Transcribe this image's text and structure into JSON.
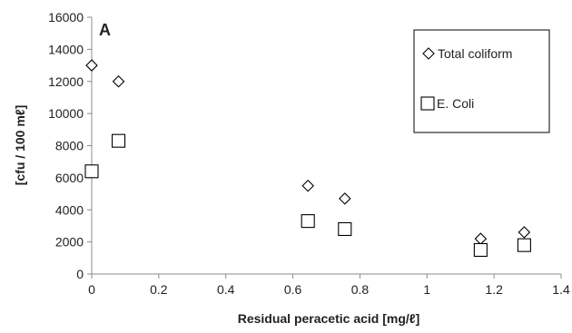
{
  "chart_data": {
    "type": "scatter",
    "panel_label": "A",
    "xlabel": "Residual peracetic acid [mg/ℓ]",
    "ylabel": "[cfu / 100 mℓ]",
    "xlim": [
      0,
      1.4
    ],
    "ylim": [
      0,
      16000
    ],
    "x_ticks": [
      "0",
      "0.2",
      "0.4",
      "0.6",
      "0.8",
      "1",
      "1.2",
      "1.4"
    ],
    "y_ticks": [
      "0",
      "2000",
      "4000",
      "6000",
      "8000",
      "10000",
      "12000",
      "14000",
      "16000"
    ],
    "grid": false,
    "legend_position": "top-right",
    "series": [
      {
        "name": "Total coliform",
        "marker": "diamond",
        "color": "#000000",
        "points": [
          {
            "x": 0.0,
            "y": 13000
          },
          {
            "x": 0.08,
            "y": 12000
          },
          {
            "x": 0.645,
            "y": 5500
          },
          {
            "x": 0.755,
            "y": 4700
          },
          {
            "x": 1.16,
            "y": 2200
          },
          {
            "x": 1.29,
            "y": 2600
          }
        ]
      },
      {
        "name": "E. Coli",
        "marker": "square",
        "color": "#000000",
        "points": [
          {
            "x": 0.0,
            "y": 6400
          },
          {
            "x": 0.08,
            "y": 8300
          },
          {
            "x": 0.645,
            "y": 3300
          },
          {
            "x": 0.755,
            "y": 2800
          },
          {
            "x": 1.16,
            "y": 1500
          },
          {
            "x": 1.29,
            "y": 1800
          }
        ]
      }
    ]
  }
}
